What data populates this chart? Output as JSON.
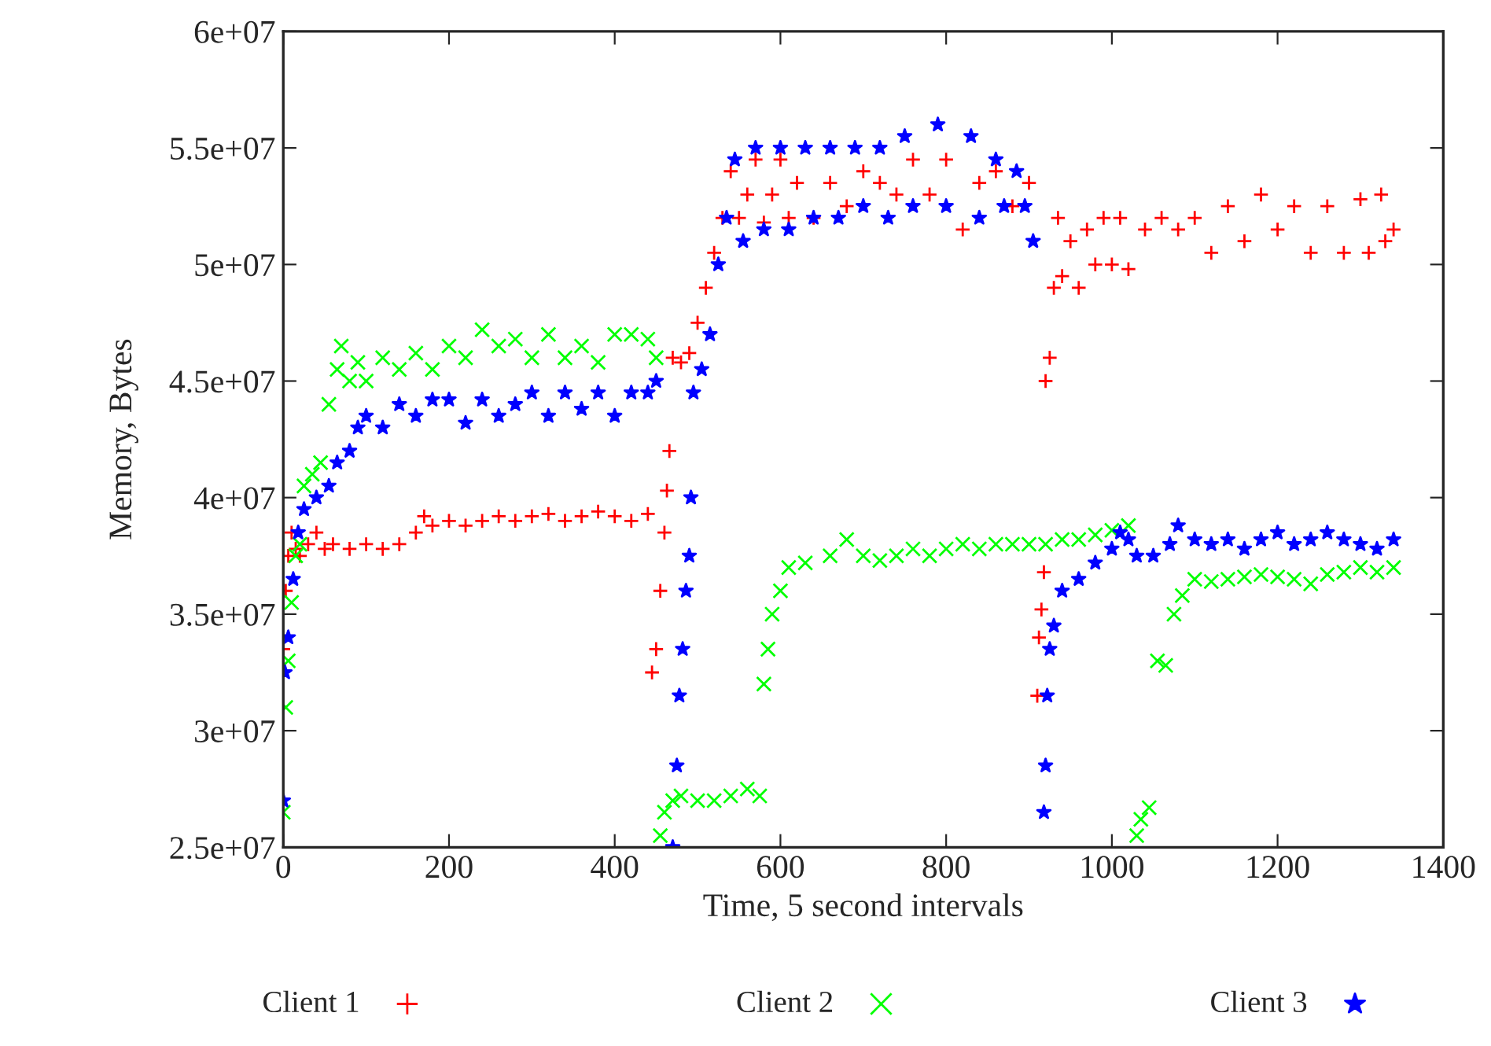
{
  "chart_data": {
    "type": "scatter",
    "xlabel": "Time, 5 second intervals",
    "ylabel": "Memory, Bytes",
    "xlim": [
      0,
      1400
    ],
    "xticks": [
      0,
      200,
      400,
      600,
      800,
      1000,
      1200,
      1400
    ],
    "ylim": [
      25000000,
      60000000
    ],
    "yticks": [
      {
        "value": 25000000,
        "label": "2.5e+07"
      },
      {
        "value": 30000000,
        "label": "3e+07"
      },
      {
        "value": 35000000,
        "label": "3.5e+07"
      },
      {
        "value": 40000000,
        "label": "4e+07"
      },
      {
        "value": 45000000,
        "label": "4.5e+07"
      },
      {
        "value": 50000000,
        "label": "5e+07"
      },
      {
        "value": 55000000,
        "label": "5.5e+07"
      },
      {
        "value": 60000000,
        "label": "6e+07"
      }
    ],
    "grid": false,
    "legend": "bottom",
    "series": [
      {
        "name": "Client 1",
        "color": "#ff0000",
        "marker": "plus",
        "x": [
          0,
          3,
          6,
          10,
          15,
          20,
          30,
          40,
          50,
          60,
          80,
          100,
          120,
          140,
          160,
          170,
          180,
          200,
          220,
          240,
          260,
          280,
          300,
          320,
          340,
          360,
          380,
          400,
          420,
          440,
          445,
          450,
          455,
          460,
          463,
          466,
          470,
          480,
          490,
          500,
          510,
          520,
          530,
          540,
          550,
          560,
          570,
          580,
          590,
          600,
          610,
          620,
          640,
          660,
          680,
          700,
          720,
          740,
          760,
          780,
          800,
          820,
          840,
          860,
          880,
          900,
          910,
          912,
          915,
          918,
          920,
          925,
          930,
          935,
          940,
          950,
          960,
          970,
          980,
          990,
          1000,
          1010,
          1020,
          1040,
          1060,
          1080,
          1100,
          1120,
          1140,
          1160,
          1180,
          1200,
          1220,
          1240,
          1260,
          1280,
          1300,
          1310,
          1325,
          1330,
          1340
        ],
        "values": [
          33500000.0,
          36000000.0,
          37500000.0,
          38500000.0,
          37800000.0,
          37500000.0,
          38000000.0,
          38500000.0,
          37800000.0,
          38000000.0,
          37800000.0,
          38000000.0,
          37800000.0,
          38000000.0,
          38500000.0,
          39200000.0,
          38800000.0,
          39000000.0,
          38800000.0,
          39000000.0,
          39200000.0,
          39000000.0,
          39200000.0,
          39300000.0,
          39000000.0,
          39200000.0,
          39400000.0,
          39200000.0,
          39000000.0,
          39300000.0,
          32500000.0,
          33500000.0,
          36000000.0,
          38500000.0,
          40300000.0,
          42000000.0,
          46000000.0,
          45800000.0,
          46200000.0,
          47500000.0,
          49000000.0,
          50500000.0,
          52000000.0,
          54000000.0,
          52000000.0,
          53000000.0,
          54500000.0,
          51800000.0,
          53000000.0,
          54500000.0,
          52000000.0,
          53500000.0,
          52000000.0,
          53500000.0,
          52500000.0,
          54000000.0,
          53500000.0,
          53000000.0,
          54500000.0,
          53000000.0,
          54500000.0,
          51500000.0,
          53500000.0,
          54000000.0,
          52500000.0,
          53500000.0,
          31500000.0,
          34000000.0,
          35200000.0,
          36800000.0,
          45000000.0,
          46000000.0,
          49000000.0,
          52000000.0,
          49500000.0,
          51000000.0,
          49000000.0,
          51500000.0,
          50000000.0,
          52000000.0,
          50000000.0,
          52000000.0,
          49800000.0,
          51500000.0,
          52000000.0,
          51500000.0,
          52000000.0,
          50500000.0,
          52500000.0,
          51000000.0,
          53000000.0,
          51500000.0,
          52500000.0,
          50500000.0,
          52500000.0,
          50500000.0,
          52800000.0,
          50500000.0,
          53000000.0,
          51000000.0,
          51500000.0
        ]
      },
      {
        "name": "Client 2",
        "color": "#00ff00",
        "marker": "cross",
        "x": [
          0,
          3,
          6,
          10,
          15,
          20,
          25,
          35,
          45,
          55,
          65,
          70,
          80,
          90,
          100,
          120,
          140,
          160,
          180,
          200,
          220,
          240,
          260,
          280,
          300,
          320,
          340,
          360,
          380,
          400,
          420,
          440,
          450,
          455,
          460,
          470,
          480,
          500,
          520,
          540,
          560,
          575,
          580,
          585,
          590,
          600,
          610,
          630,
          660,
          680,
          700,
          720,
          740,
          760,
          780,
          800,
          820,
          840,
          860,
          880,
          900,
          920,
          940,
          960,
          980,
          1000,
          1020,
          1030,
          1035,
          1045,
          1055,
          1065,
          1075,
          1085,
          1100,
          1120,
          1140,
          1160,
          1180,
          1200,
          1220,
          1240,
          1260,
          1280,
          1300,
          1320,
          1340
        ],
        "values": [
          26500000.0,
          31000000.0,
          33000000.0,
          35500000.0,
          37500000.0,
          38000000.0,
          40500000.0,
          41000000.0,
          41500000.0,
          44000000.0,
          45500000.0,
          46500000.0,
          45000000.0,
          45800000.0,
          45000000.0,
          46000000.0,
          45500000.0,
          46200000.0,
          45500000.0,
          46500000.0,
          46000000.0,
          47200000.0,
          46500000.0,
          46800000.0,
          46000000.0,
          47000000.0,
          46000000.0,
          46500000.0,
          45800000.0,
          47000000.0,
          47000000.0,
          46800000.0,
          46000000.0,
          25500000.0,
          26500000.0,
          27000000.0,
          27200000.0,
          27000000.0,
          27000000.0,
          27200000.0,
          27500000.0,
          27200000.0,
          32000000.0,
          33500000.0,
          35000000.0,
          36000000.0,
          37000000.0,
          37200000.0,
          37500000.0,
          38200000.0,
          37500000.0,
          37300000.0,
          37500000.0,
          37800000.0,
          37500000.0,
          37800000.0,
          38000000.0,
          37800000.0,
          38000000.0,
          38000000.0,
          38000000.0,
          38000000.0,
          38200000.0,
          38200000.0,
          38400000.0,
          38600000.0,
          38800000.0,
          25500000.0,
          26200000.0,
          26700000.0,
          33000000.0,
          32800000.0,
          35000000.0,
          35800000.0,
          36500000.0,
          36400000.0,
          36500000.0,
          36600000.0,
          36700000.0,
          36600000.0,
          36500000.0,
          36300000.0,
          36700000.0,
          36800000.0,
          37000000.0,
          36800000.0,
          37000000.0
        ]
      },
      {
        "name": "Client 3",
        "color": "#0000ff",
        "marker": "star",
        "x": [
          0,
          2,
          6,
          12,
          18,
          25,
          40,
          55,
          65,
          80,
          90,
          100,
          120,
          140,
          160,
          180,
          200,
          220,
          240,
          260,
          280,
          300,
          320,
          340,
          360,
          380,
          400,
          420,
          440,
          450,
          470,
          475,
          478,
          482,
          486,
          490,
          492,
          495,
          505,
          515,
          525,
          535,
          545,
          555,
          570,
          580,
          600,
          610,
          630,
          640,
          660,
          670,
          690,
          700,
          720,
          730,
          750,
          760,
          790,
          800,
          830,
          840,
          860,
          870,
          885,
          895,
          905,
          918,
          920,
          922,
          925,
          930,
          940,
          960,
          980,
          1000,
          1010,
          1020,
          1030,
          1050,
          1070,
          1080,
          1100,
          1120,
          1140,
          1160,
          1180,
          1200,
          1220,
          1240,
          1260,
          1280,
          1300,
          1320,
          1340
        ],
        "values": [
          27000000.0,
          32500000.0,
          34000000.0,
          36500000.0,
          38500000.0,
          39500000.0,
          40000000.0,
          40500000.0,
          41500000.0,
          42000000.0,
          43000000.0,
          43500000.0,
          43000000.0,
          44000000.0,
          43500000.0,
          44200000.0,
          44200000.0,
          43200000.0,
          44200000.0,
          43500000.0,
          44000000.0,
          44500000.0,
          43500000.0,
          44500000.0,
          43800000.0,
          44500000.0,
          43500000.0,
          44500000.0,
          44500000.0,
          45000000.0,
          25000000.0,
          28500000.0,
          31500000.0,
          33500000.0,
          36000000.0,
          37500000.0,
          40000000.0,
          44500000.0,
          45500000.0,
          47000000.0,
          50000000.0,
          52000000.0,
          54500000.0,
          51000000.0,
          55000000.0,
          51500000.0,
          55000000.0,
          51500000.0,
          55000000.0,
          52000000.0,
          55000000.0,
          52000000.0,
          55000000.0,
          52500000.0,
          55000000.0,
          52000000.0,
          55500000.0,
          52500000.0,
          56000000.0,
          52500000.0,
          55500000.0,
          52000000.0,
          54500000.0,
          52500000.0,
          54000000.0,
          52500000.0,
          51000000.0,
          26500000.0,
          28500000.0,
          31500000.0,
          33500000.0,
          34500000.0,
          36000000.0,
          36500000.0,
          37200000.0,
          37800000.0,
          38500000.0,
          38200000.0,
          37500000.0,
          37500000.0,
          38000000.0,
          38800000.0,
          38200000.0,
          38000000.0,
          38200000.0,
          37800000.0,
          38200000.0,
          38500000.0,
          38000000.0,
          38200000.0,
          38500000.0,
          38200000.0,
          38000000.0,
          37800000.0,
          38200000.0
        ]
      }
    ]
  }
}
